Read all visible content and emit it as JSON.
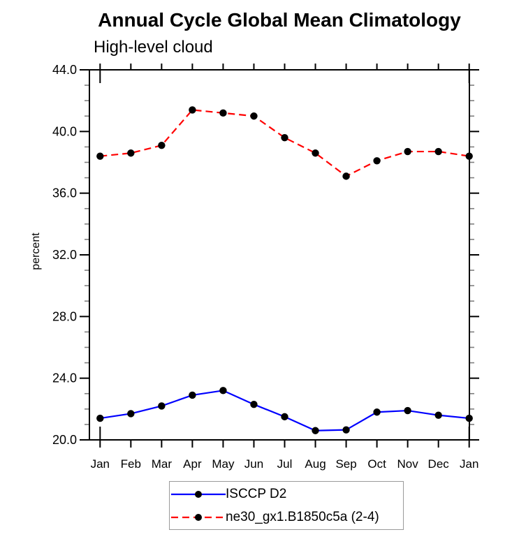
{
  "page": {
    "background": "#ffffff"
  },
  "chart_data": {
    "type": "line",
    "title": "Annual Cycle Global Mean Climatology",
    "subtitle": "High-level cloud",
    "xlabel": "",
    "ylabel": "percent",
    "categories": [
      "Jan",
      "Feb",
      "Mar",
      "Apr",
      "May",
      "Jun",
      "Jul",
      "Aug",
      "Sep",
      "Oct",
      "Nov",
      "Dec",
      "Jan"
    ],
    "ylim": [
      20.0,
      44.0
    ],
    "ytick_step": 4.0,
    "ytick_labels": [
      "20.0",
      "24.0",
      "28.0",
      "32.0",
      "36.0",
      "40.0",
      "44.0"
    ],
    "yminor_step": 1.0,
    "grid": false,
    "legend_position": "bottom-center",
    "axis": {
      "line_color": "#000000",
      "major_tick_color": "#000000",
      "minor_tick_color": "#7f7f7f"
    },
    "series": [
      {
        "name": "ISCCP D2",
        "color": "#0000ff",
        "style": "solid",
        "marker": "circle",
        "marker_color": "#000000",
        "values": [
          21.4,
          21.7,
          22.2,
          22.9,
          23.2,
          22.3,
          21.5,
          20.6,
          20.65,
          21.8,
          21.9,
          21.6,
          21.4
        ]
      },
      {
        "name": "ne30_gx1.B1850c5a (2-4)",
        "color": "#ff0000",
        "style": "dashed",
        "marker": "circle",
        "marker_color": "#000000",
        "values": [
          38.4,
          38.6,
          39.1,
          41.4,
          41.2,
          41.0,
          39.6,
          38.6,
          37.1,
          38.1,
          38.7,
          38.7,
          38.4
        ]
      }
    ]
  }
}
